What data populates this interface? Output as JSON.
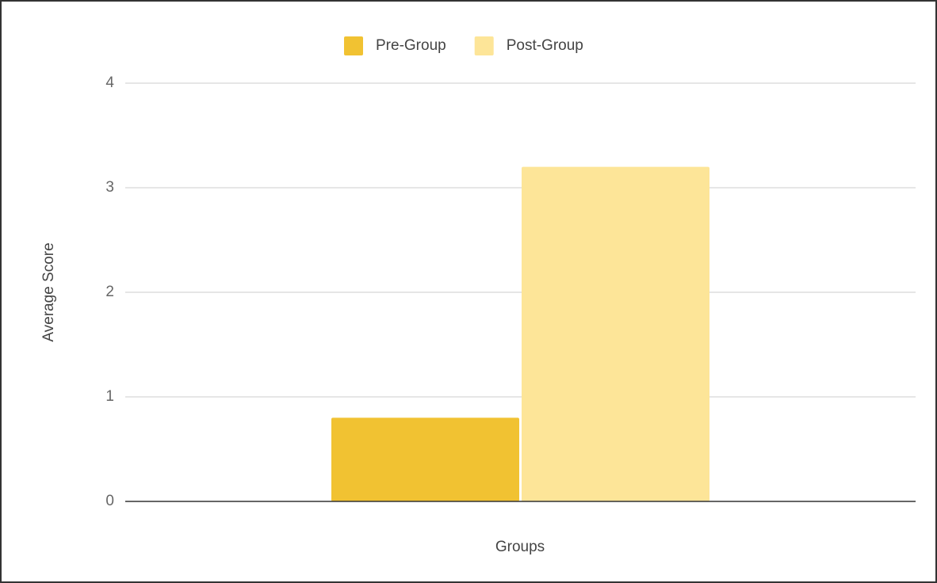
{
  "chart_data": {
    "type": "bar",
    "categories": [
      null
    ],
    "series": [
      {
        "name": "Pre-Group",
        "color": "#f1c232",
        "values": [
          0.8
        ]
      },
      {
        "name": "Post-Group",
        "color": "#fde598",
        "values": [
          3.2
        ]
      }
    ],
    "x_label": "Groups",
    "y_label": "Average Score",
    "ylim": [
      0,
      4
    ],
    "yticks": [
      0,
      1,
      2,
      3,
      4
    ],
    "grid": true,
    "legend": "top"
  }
}
